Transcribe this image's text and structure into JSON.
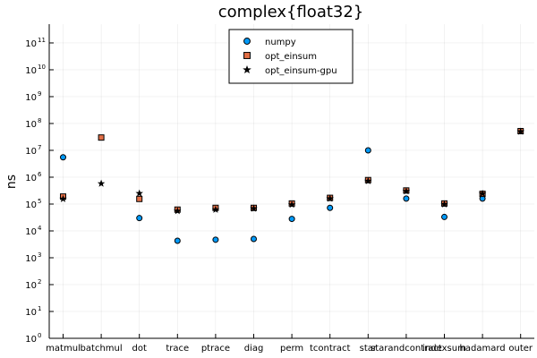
{
  "chart_data": {
    "type": "scatter",
    "title": "complex{float32}",
    "xlabel": "",
    "ylabel": "ns",
    "y_scale": "log10",
    "ylim": [
      1,
      500000000000
    ],
    "y_ticks": [
      {
        "base": "10",
        "exp": "0"
      },
      {
        "base": "10",
        "exp": "1"
      },
      {
        "base": "10",
        "exp": "2"
      },
      {
        "base": "10",
        "exp": "3"
      },
      {
        "base": "10",
        "exp": "4"
      },
      {
        "base": "10",
        "exp": "5"
      },
      {
        "base": "10",
        "exp": "6"
      },
      {
        "base": "10",
        "exp": "7"
      },
      {
        "base": "10",
        "exp": "8"
      },
      {
        "base": "10",
        "exp": "9"
      },
      {
        "base": "10",
        "exp": "10"
      },
      {
        "base": "10",
        "exp": "11"
      }
    ],
    "categories": [
      "matmul",
      "batchmul",
      "dot",
      "trace",
      "ptrace",
      "diag",
      "perm",
      "tcontract",
      "star",
      "starandcontract",
      "indexsum",
      "hadamard",
      "outer"
    ],
    "grid": true,
    "legend_position": "top-center",
    "series": [
      {
        "name": "numpy",
        "marker": "circle",
        "color": "#009af9",
        "values": [
          5500000,
          null,
          30000,
          4300,
          4700,
          5000,
          28000,
          72000,
          10000000,
          160000,
          33000,
          160000,
          null
        ]
      },
      {
        "name": "opt_einsum",
        "marker": "square",
        "color": "#e26f46",
        "values": [
          190000,
          30000000,
          155000,
          62000,
          72000,
          72000,
          105000,
          170000,
          780000,
          320000,
          105000,
          240000,
          52000000
        ]
      },
      {
        "name": "opt_einsum-gpu",
        "marker": "star",
        "color": "#000000",
        "values": [
          155000,
          580000,
          250000,
          55000,
          62000,
          68000,
          95000,
          160000,
          720000,
          300000,
          98000,
          245000,
          50000000
        ]
      }
    ]
  }
}
